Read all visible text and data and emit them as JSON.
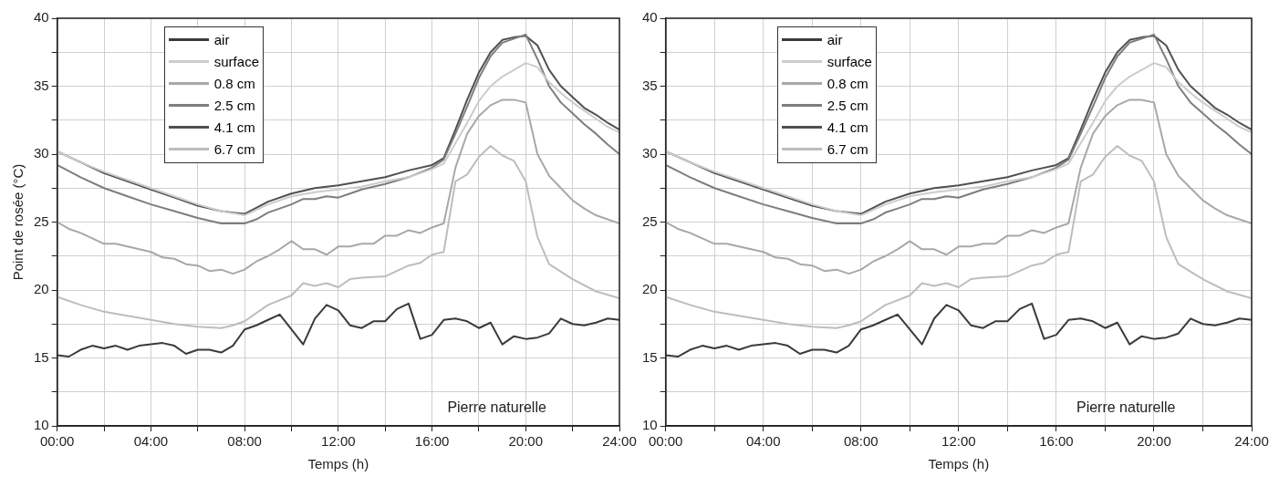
{
  "chart_data": [
    {
      "type": "line",
      "xlabel": "Temps (h)",
      "ylabel": "Point de rosée (°C)",
      "xlim": [
        0,
        24
      ],
      "ylim": [
        10,
        40
      ],
      "xticks": [
        {
          "value": 0,
          "label": "00:00"
        },
        {
          "value": 2,
          "label": null
        },
        {
          "value": 4,
          "label": "04:00"
        },
        {
          "value": 6,
          "label": null
        },
        {
          "value": 8,
          "label": "08:00"
        },
        {
          "value": 10,
          "label": null
        },
        {
          "value": 12,
          "label": "12:00"
        },
        {
          "value": 14,
          "label": null
        },
        {
          "value": 16,
          "label": "16:00"
        },
        {
          "value": 18,
          "label": null
        },
        {
          "value": 20,
          "label": "20:00"
        },
        {
          "value": 22,
          "label": null
        },
        {
          "value": 24,
          "label": "24:00"
        }
      ],
      "yticks": [
        10,
        {
          "value": 12.5,
          "label": null
        },
        15,
        {
          "value": 17.5,
          "label": null
        },
        20,
        {
          "value": 22.5,
          "label": null
        },
        25,
        {
          "value": 27.5,
          "label": null
        },
        30,
        {
          "value": 32.5,
          "label": null
        },
        35,
        {
          "value": 37.5,
          "label": null
        },
        40
      ],
      "grid": true,
      "legend": "top left",
      "annotations": [
        "Pierre naturelle"
      ],
      "series": [
        {
          "name": "air",
          "color": "#3a3a3a",
          "x": [
            0,
            0.5,
            1,
            1.5,
            2,
            2.5,
            3,
            3.5,
            4,
            4.5,
            5,
            5.5,
            6,
            6.5,
            7,
            7.5,
            8,
            8.5,
            9,
            9.5,
            10,
            10.5,
            11,
            11.5,
            12,
            12.5,
            13,
            13.5,
            14,
            14.5,
            15,
            15.5,
            16,
            16.5,
            17,
            17.5,
            18,
            18.5,
            19,
            19.5,
            20,
            20.5,
            21,
            21.5,
            22,
            22.5,
            23,
            23.5,
            24
          ],
          "values": [
            15.2,
            15.1,
            15.6,
            15.9,
            15.7,
            15.9,
            15.6,
            15.9,
            16.0,
            16.1,
            15.9,
            15.3,
            15.6,
            15.6,
            15.4,
            15.9,
            17.1,
            17.4,
            17.8,
            18.2,
            17.1,
            16.0,
            17.9,
            18.9,
            18.5,
            17.4,
            17.2,
            17.7,
            17.7,
            18.6,
            19.0,
            16.4,
            16.7,
            17.8,
            17.9,
            17.7,
            17.2,
            17.6,
            16.0,
            16.6,
            16.4,
            16.5,
            16.8,
            17.9,
            17.5,
            17.4,
            17.6,
            17.9,
            17.8
          ]
        },
        {
          "name": "surface",
          "color": "#cccccc",
          "x": [
            0,
            1,
            2,
            3,
            4,
            5,
            6,
            7,
            8,
            9,
            10,
            11,
            12,
            13,
            14,
            15,
            16,
            16.5,
            17,
            17.5,
            18,
            18.5,
            19,
            19.5,
            20,
            20.5,
            21,
            21.5,
            22,
            22.5,
            23,
            23.5,
            24
          ],
          "values": [
            30.2,
            29.4,
            28.7,
            28.1,
            27.5,
            26.9,
            26.3,
            25.8,
            25.5,
            26.3,
            26.9,
            27.2,
            27.4,
            27.6,
            28.0,
            28.3,
            28.9,
            29.3,
            30.8,
            32.3,
            33.9,
            35.0,
            35.7,
            36.2,
            36.7,
            36.4,
            35.3,
            34.5,
            33.8,
            33.2,
            32.6,
            32.0,
            31.6
          ]
        },
        {
          "name": "0.8 cm",
          "color": "#a8a8a8",
          "x": [
            0,
            0.5,
            1,
            1.5,
            2,
            2.5,
            3,
            3.5,
            4,
            4.5,
            5,
            5.5,
            6,
            6.5,
            7,
            7.5,
            8,
            8.5,
            9,
            9.5,
            10,
            10.5,
            11,
            11.5,
            12,
            12.5,
            13,
            13.5,
            14,
            14.5,
            15,
            15.5,
            16,
            16.5,
            17,
            17.5,
            18,
            18.5,
            19,
            19.5,
            20,
            20.5,
            21,
            21.5,
            22,
            22.5,
            23,
            24
          ],
          "values": [
            25.0,
            24.5,
            24.2,
            23.8,
            23.4,
            23.4,
            23.2,
            23.0,
            22.8,
            22.4,
            22.3,
            21.9,
            21.8,
            21.4,
            21.5,
            21.2,
            21.5,
            22.1,
            22.5,
            23.0,
            23.6,
            23.0,
            23.0,
            22.6,
            23.2,
            23.2,
            23.4,
            23.4,
            24.0,
            24.0,
            24.4,
            24.2,
            24.6,
            24.9,
            29.0,
            31.5,
            32.8,
            33.6,
            34.0,
            34.0,
            33.8,
            30.0,
            28.4,
            27.5,
            26.6,
            26.0,
            25.5,
            24.9
          ]
        },
        {
          "name": "2.5 cm",
          "color": "#7e7e7e",
          "x": [
            0,
            1,
            2,
            3,
            4,
            5,
            6,
            7,
            8,
            8.5,
            9,
            9.5,
            10,
            10.5,
            11,
            11.5,
            12,
            12.5,
            13,
            14,
            15,
            16,
            16.5,
            17,
            17.5,
            18,
            18.5,
            19,
            19.5,
            20,
            20.5,
            21,
            21.5,
            22,
            22.5,
            23,
            23.5,
            24
          ],
          "values": [
            29.2,
            28.3,
            27.5,
            26.9,
            26.3,
            25.8,
            25.3,
            24.9,
            24.9,
            25.2,
            25.7,
            26.0,
            26.3,
            26.7,
            26.7,
            26.9,
            26.8,
            27.1,
            27.4,
            27.8,
            28.3,
            29.0,
            29.6,
            31.5,
            33.5,
            35.6,
            37.2,
            38.2,
            38.5,
            38.8,
            37.0,
            35.0,
            33.8,
            33.0,
            32.2,
            31.5,
            30.7,
            30.0
          ]
        },
        {
          "name": "4.1 cm",
          "color": "#505050",
          "x": [
            0,
            1,
            2,
            3,
            4,
            5,
            6,
            7,
            8,
            9,
            10,
            11,
            12,
            13,
            14,
            15,
            16,
            16.5,
            17,
            17.5,
            18,
            18.5,
            19,
            19.5,
            20,
            20.5,
            21,
            21.5,
            22,
            22.5,
            23,
            23.5,
            24
          ],
          "values": [
            30.2,
            29.4,
            28.6,
            28.0,
            27.4,
            26.8,
            26.2,
            25.8,
            25.6,
            26.5,
            27.1,
            27.5,
            27.7,
            28.0,
            28.3,
            28.8,
            29.2,
            29.7,
            31.8,
            34.0,
            36.0,
            37.5,
            38.4,
            38.6,
            38.7,
            38.0,
            36.2,
            35.0,
            34.2,
            33.4,
            32.9,
            32.3,
            31.8
          ]
        },
        {
          "name": "6.7 cm",
          "color": "#bdbdbd",
          "x": [
            0,
            1,
            2,
            3,
            4,
            5,
            6,
            7,
            7.5,
            8,
            9,
            10,
            10.5,
            11,
            11.5,
            12,
            12.5,
            13,
            14,
            14.5,
            15,
            15.5,
            16,
            16.5,
            17,
            17.5,
            18,
            18.5,
            19,
            19.5,
            20,
            20.5,
            21,
            22,
            23,
            24
          ],
          "values": [
            19.5,
            18.9,
            18.4,
            18.1,
            17.8,
            17.5,
            17.3,
            17.2,
            17.4,
            17.7,
            18.9,
            19.6,
            20.5,
            20.3,
            20.5,
            20.2,
            20.8,
            20.9,
            21.0,
            21.4,
            21.8,
            22.0,
            22.6,
            22.8,
            28.0,
            28.5,
            29.8,
            30.6,
            29.9,
            29.5,
            28.0,
            23.9,
            21.9,
            20.8,
            19.9,
            19.4
          ]
        }
      ]
    },
    {
      "type": "line",
      "xlabel": "Temps (h)",
      "xlim": [
        0,
        24
      ],
      "ylim": [
        10,
        40
      ],
      "xticks": [
        {
          "value": 0,
          "label": "00:00"
        },
        {
          "value": 2,
          "label": null
        },
        {
          "value": 4,
          "label": "04:00"
        },
        {
          "value": 6,
          "label": null
        },
        {
          "value": 8,
          "label": "08:00"
        },
        {
          "value": 10,
          "label": null
        },
        {
          "value": 12,
          "label": "12:00"
        },
        {
          "value": 14,
          "label": null
        },
        {
          "value": 16,
          "label": "16:00"
        },
        {
          "value": 18,
          "label": null
        },
        {
          "value": 20,
          "label": "20:00"
        },
        {
          "value": 22,
          "label": null
        },
        {
          "value": 24,
          "label": "24:00"
        }
      ],
      "yticks": [
        10,
        {
          "value": 12.5,
          "label": null
        },
        15,
        {
          "value": 17.5,
          "label": null
        },
        20,
        {
          "value": 22.5,
          "label": null
        },
        25,
        {
          "value": 27.5,
          "label": null
        },
        30,
        {
          "value": 32.5,
          "label": null
        },
        35,
        {
          "value": 37.5,
          "label": null
        },
        40
      ],
      "grid": true,
      "legend": "top left",
      "annotations": [
        "Pierre naturelle"
      ],
      "series": [
        {
          "name": "air",
          "color": "#3a3a3a",
          "x": [
            0,
            0.5,
            1,
            1.5,
            2,
            2.5,
            3,
            3.5,
            4,
            4.5,
            5,
            5.5,
            6,
            6.5,
            7,
            7.5,
            8,
            8.5,
            9,
            9.5,
            10,
            10.5,
            11,
            11.5,
            12,
            12.5,
            13,
            13.5,
            14,
            14.5,
            15,
            15.5,
            16,
            16.5,
            17,
            17.5,
            18,
            18.5,
            19,
            19.5,
            20,
            20.5,
            21,
            21.5,
            22,
            22.5,
            23,
            23.5,
            24
          ],
          "values": [
            15.2,
            15.1,
            15.6,
            15.9,
            15.7,
            15.9,
            15.6,
            15.9,
            16.0,
            16.1,
            15.9,
            15.3,
            15.6,
            15.6,
            15.4,
            15.9,
            17.1,
            17.4,
            17.8,
            18.2,
            17.1,
            16.0,
            17.9,
            18.9,
            18.5,
            17.4,
            17.2,
            17.7,
            17.7,
            18.6,
            19.0,
            16.4,
            16.7,
            17.8,
            17.9,
            17.7,
            17.2,
            17.6,
            16.0,
            16.6,
            16.4,
            16.5,
            16.8,
            17.9,
            17.5,
            17.4,
            17.6,
            17.9,
            17.8
          ]
        },
        {
          "name": "surface",
          "color": "#cccccc",
          "x": [
            0,
            1,
            2,
            3,
            4,
            5,
            6,
            7,
            8,
            9,
            10,
            11,
            12,
            13,
            14,
            15,
            16,
            16.5,
            17,
            17.5,
            18,
            18.5,
            19,
            19.5,
            20,
            20.5,
            21,
            21.5,
            22,
            22.5,
            23,
            23.5,
            24
          ],
          "values": [
            30.2,
            29.4,
            28.7,
            28.1,
            27.5,
            26.9,
            26.3,
            25.8,
            25.5,
            26.3,
            26.9,
            27.2,
            27.4,
            27.6,
            28.0,
            28.3,
            28.9,
            29.3,
            30.8,
            32.3,
            33.9,
            35.0,
            35.7,
            36.2,
            36.7,
            36.4,
            35.3,
            34.5,
            33.8,
            33.2,
            32.6,
            32.0,
            31.6
          ]
        },
        {
          "name": "0.8 cm",
          "color": "#a8a8a8",
          "x": [
            0,
            0.5,
            1,
            1.5,
            2,
            2.5,
            3,
            3.5,
            4,
            4.5,
            5,
            5.5,
            6,
            6.5,
            7,
            7.5,
            8,
            8.5,
            9,
            9.5,
            10,
            10.5,
            11,
            11.5,
            12,
            12.5,
            13,
            13.5,
            14,
            14.5,
            15,
            15.5,
            16,
            16.5,
            17,
            17.5,
            18,
            18.5,
            19,
            19.5,
            20,
            20.5,
            21,
            21.5,
            22,
            22.5,
            23,
            24
          ],
          "values": [
            25.0,
            24.5,
            24.2,
            23.8,
            23.4,
            23.4,
            23.2,
            23.0,
            22.8,
            22.4,
            22.3,
            21.9,
            21.8,
            21.4,
            21.5,
            21.2,
            21.5,
            22.1,
            22.5,
            23.0,
            23.6,
            23.0,
            23.0,
            22.6,
            23.2,
            23.2,
            23.4,
            23.4,
            24.0,
            24.0,
            24.4,
            24.2,
            24.6,
            24.9,
            29.0,
            31.5,
            32.8,
            33.6,
            34.0,
            34.0,
            33.8,
            30.0,
            28.4,
            27.5,
            26.6,
            26.0,
            25.5,
            24.9
          ]
        },
        {
          "name": "2.5 cm",
          "color": "#7e7e7e",
          "x": [
            0,
            1,
            2,
            3,
            4,
            5,
            6,
            7,
            8,
            8.5,
            9,
            9.5,
            10,
            10.5,
            11,
            11.5,
            12,
            12.5,
            13,
            14,
            15,
            16,
            16.5,
            17,
            17.5,
            18,
            18.5,
            19,
            19.5,
            20,
            20.5,
            21,
            21.5,
            22,
            22.5,
            23,
            23.5,
            24
          ],
          "values": [
            29.2,
            28.3,
            27.5,
            26.9,
            26.3,
            25.8,
            25.3,
            24.9,
            24.9,
            25.2,
            25.7,
            26.0,
            26.3,
            26.7,
            26.7,
            26.9,
            26.8,
            27.1,
            27.4,
            27.8,
            28.3,
            29.0,
            29.6,
            31.5,
            33.5,
            35.6,
            37.2,
            38.2,
            38.5,
            38.8,
            37.0,
            35.0,
            33.8,
            33.0,
            32.2,
            31.5,
            30.7,
            30.0
          ]
        },
        {
          "name": "4.1 cm",
          "color": "#505050",
          "x": [
            0,
            1,
            2,
            3,
            4,
            5,
            6,
            7,
            8,
            9,
            10,
            11,
            12,
            13,
            14,
            15,
            16,
            16.5,
            17,
            17.5,
            18,
            18.5,
            19,
            19.5,
            20,
            20.5,
            21,
            21.5,
            22,
            22.5,
            23,
            23.5,
            24
          ],
          "values": [
            30.2,
            29.4,
            28.6,
            28.0,
            27.4,
            26.8,
            26.2,
            25.8,
            25.6,
            26.5,
            27.1,
            27.5,
            27.7,
            28.0,
            28.3,
            28.8,
            29.2,
            29.7,
            31.8,
            34.0,
            36.0,
            37.5,
            38.4,
            38.6,
            38.7,
            38.0,
            36.2,
            35.0,
            34.2,
            33.4,
            32.9,
            32.3,
            31.8
          ]
        },
        {
          "name": "6.7 cm",
          "color": "#bdbdbd",
          "x": [
            0,
            1,
            2,
            3,
            4,
            5,
            6,
            7,
            7.5,
            8,
            9,
            10,
            10.5,
            11,
            11.5,
            12,
            12.5,
            13,
            14,
            14.5,
            15,
            15.5,
            16,
            16.5,
            17,
            17.5,
            18,
            18.5,
            19,
            19.5,
            20,
            20.5,
            21,
            22,
            23,
            24
          ],
          "values": [
            19.5,
            18.9,
            18.4,
            18.1,
            17.8,
            17.5,
            17.3,
            17.2,
            17.4,
            17.7,
            18.9,
            19.6,
            20.5,
            20.3,
            20.5,
            20.2,
            20.8,
            20.9,
            21.0,
            21.4,
            21.8,
            22.0,
            22.6,
            22.8,
            28.0,
            28.5,
            29.8,
            30.6,
            29.9,
            29.5,
            28.0,
            23.9,
            21.9,
            20.8,
            19.9,
            19.4
          ]
        }
      ]
    }
  ]
}
